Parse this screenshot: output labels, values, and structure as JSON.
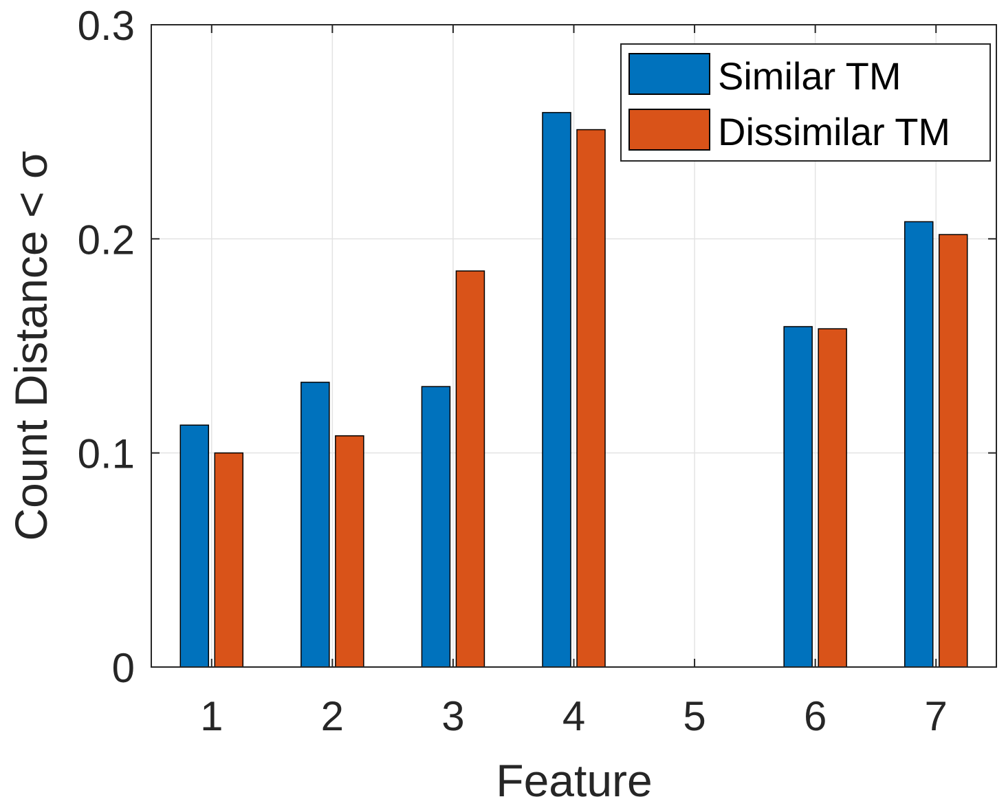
{
  "chart_data": {
    "type": "bar",
    "categories": [
      "1",
      "2",
      "3",
      "4",
      "5",
      "6",
      "7"
    ],
    "series": [
      {
        "name": "Similar TM",
        "color": "#0072BD",
        "values": [
          0.113,
          0.133,
          0.131,
          0.259,
          0.0,
          0.159,
          0.208
        ]
      },
      {
        "name": "Dissimilar TM",
        "color": "#D95319",
        "values": [
          0.1,
          0.108,
          0.185,
          0.251,
          0.0,
          0.158,
          0.202
        ]
      }
    ],
    "xlabel": "Feature",
    "ylabel": "Count Distance < σ",
    "ylim": [
      0,
      0.3
    ],
    "yticks": [
      0,
      0.1,
      0.2,
      0.3
    ],
    "ytick_labels": [
      "0",
      "0.1",
      "0.2",
      "0.3"
    ],
    "grid": true,
    "legend_position": "top-right"
  }
}
